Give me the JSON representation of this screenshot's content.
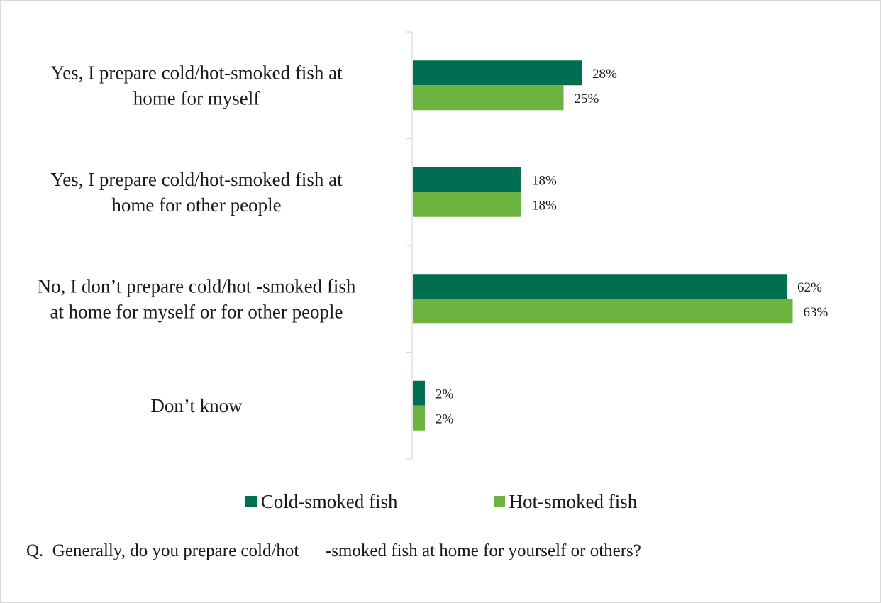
{
  "chart_data": {
    "type": "bar",
    "orientation": "horizontal",
    "categories": [
      [
        "Yes, I prepare cold/hot-smoked fish at",
        "home for myself"
      ],
      [
        "Yes, I prepare cold/hot-smoked fish at",
        "home for other people"
      ],
      [
        "No, I don’t prepare cold/hot    -smoked fish",
        "at home for myself or for other people"
      ],
      [
        "Don’t know"
      ]
    ],
    "series": [
      {
        "name": "Cold-smoked fish",
        "color": "#006f51",
        "values": [
          28,
          18,
          62,
          2
        ],
        "labels": [
          "28%",
          "18%",
          "62%",
          "2%"
        ]
      },
      {
        "name": "Hot-smoked fish",
        "color": "#6db33f",
        "values": [
          25,
          18,
          63,
          2
        ],
        "labels": [
          "25%",
          "18%",
          "63%",
          "2%"
        ]
      }
    ],
    "xlim": [
      0,
      80
    ],
    "unit": "%",
    "grid": false,
    "legend": "bottom-center"
  },
  "question": "Q.  Generally, do you prepare cold/hot      -smoked fish at home for yourself or others?"
}
